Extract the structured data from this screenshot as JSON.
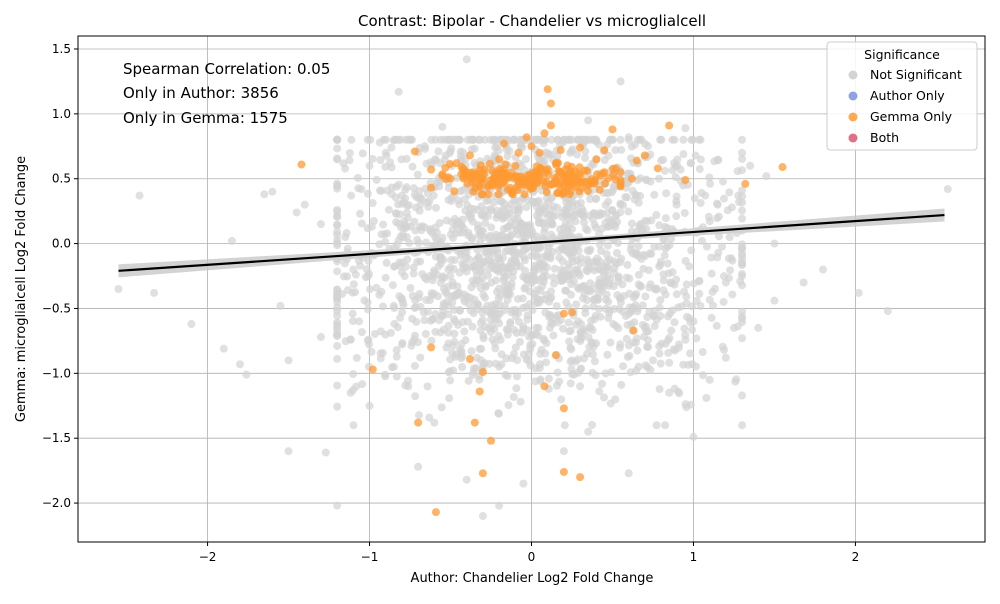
{
  "chart_data": {
    "type": "scatter",
    "title": "Contrast: Bipolar - Chandelier vs microglialcell",
    "xlabel": "Author: Chandelier Log2 Fold Change",
    "ylabel": "Gemma: microglialcell Log2 Fold Change",
    "xlim": [
      -2.8,
      2.8
    ],
    "ylim": [
      -2.3,
      1.6
    ],
    "x_ticks": [
      -2,
      -1,
      0,
      1,
      2
    ],
    "y_ticks": [
      -2.0,
      -1.5,
      -1.0,
      -0.5,
      0.0,
      0.5,
      1.0,
      1.5
    ],
    "x_tick_labels": [
      "−2",
      "−1",
      "0",
      "1",
      "2"
    ],
    "y_tick_labels": [
      "−2.0",
      "−1.5",
      "−1.0",
      "−0.5",
      "0.0",
      "0.5",
      "1.0",
      "1.5"
    ],
    "grid": true,
    "legend_position": "top-right",
    "annotations": [
      "Spearman Correlation: 0.05",
      "Only in Author: 3856",
      "Only in Gemma: 1575"
    ],
    "legend": {
      "title": "Significance",
      "entries": [
        {
          "label": "Not Significant",
          "color": "#d3d3d3"
        },
        {
          "label": "Author Only",
          "color": "#7b93db"
        },
        {
          "label": "Gemma Only",
          "color": "#ff9a33"
        },
        {
          "label": "Both",
          "color": "#dd5770"
        }
      ]
    },
    "regression_line": {
      "x": [
        -2.55,
        2.55
      ],
      "y": [
        -0.21,
        0.22
      ],
      "color": "#000000",
      "ci_color": "#c8c8c8"
    },
    "series": [
      {
        "name": "Not Significant",
        "color": "#d3d3d3",
        "points": [
          [
            -2.55,
            -0.35
          ],
          [
            -2.42,
            0.37
          ],
          [
            -2.33,
            -0.38
          ],
          [
            -2.1,
            -0.62
          ],
          [
            -1.9,
            -0.81
          ],
          [
            -1.85,
            0.02
          ],
          [
            -1.8,
            -0.93
          ],
          [
            -1.76,
            -1.01
          ],
          [
            -1.65,
            0.38
          ],
          [
            -1.6,
            0.4
          ],
          [
            -1.55,
            -0.48
          ],
          [
            -1.5,
            -1.6
          ],
          [
            -1.5,
            -0.9
          ],
          [
            -1.45,
            0.24
          ],
          [
            -1.4,
            0.3
          ],
          [
            -1.27,
            -1.61
          ],
          [
            -1.2,
            -2.02
          ],
          [
            -1.0,
            -1.25
          ],
          [
            -0.82,
            1.17
          ],
          [
            -0.4,
            1.42
          ],
          [
            0.55,
            1.25
          ],
          [
            0.8,
            0.64
          ],
          [
            0.95,
            0.89
          ],
          [
            1.05,
            0.39
          ],
          [
            1.08,
            -1.19
          ],
          [
            1.0,
            -1.49
          ],
          [
            1.3,
            0.7
          ],
          [
            1.35,
            0.6
          ],
          [
            1.45,
            0.52
          ],
          [
            1.5,
            -0.44
          ],
          [
            1.5,
            0.0
          ],
          [
            1.68,
            -0.3
          ],
          [
            1.8,
            -0.2
          ],
          [
            2.02,
            -0.38
          ],
          [
            2.2,
            -0.52
          ],
          [
            2.57,
            0.42
          ],
          [
            1.25,
            -0.65
          ],
          [
            1.2,
            -0.88
          ],
          [
            1.4,
            -0.65
          ],
          [
            -0.3,
            -2.1
          ],
          [
            -0.2,
            -2.02
          ],
          [
            -0.05,
            -1.85
          ],
          [
            -0.4,
            -1.82
          ],
          [
            -0.7,
            -1.72
          ],
          [
            0.6,
            -1.77
          ],
          [
            0.2,
            -1.6
          ],
          [
            0.35,
            -1.45
          ],
          [
            -0.6,
            -1.38
          ],
          [
            0.85,
            -1.15
          ],
          [
            1.1,
            -1.05
          ],
          [
            -1.3,
            -0.72
          ],
          [
            -1.2,
            -0.45
          ],
          [
            -1.15,
            0.05
          ],
          [
            -1.05,
            0.42
          ],
          [
            -1.0,
            0.6
          ],
          [
            -0.9,
            0.7
          ],
          [
            -0.75,
            0.8
          ],
          [
            -0.55,
            0.9
          ],
          [
            0.35,
            0.95
          ],
          [
            0.6,
            0.82
          ],
          [
            0.9,
            0.6
          ],
          [
            1.15,
            0.3
          ],
          [
            1.2,
            -0.3
          ],
          [
            1.0,
            -0.6
          ],
          [
            0.75,
            -0.9
          ],
          [
            -0.85,
            -0.95
          ],
          [
            -1.1,
            -0.2
          ],
          [
            1.3,
            0.1
          ],
          [
            -1.3,
            0.15
          ],
          [
            0.3,
            -1.1
          ]
        ],
        "dense_cloud": {
          "center": [
            0.0,
            -0.05
          ],
          "spread_x": [
            -1.2,
            1.3
          ],
          "spread_y": [
            -1.4,
            0.8
          ],
          "count": 1900
        }
      },
      {
        "name": "Gemma Only",
        "color": "#ff9a33",
        "points": [
          [
            -1.42,
            0.61
          ],
          [
            -0.72,
            0.71
          ],
          [
            -0.62,
            0.57
          ],
          [
            -0.62,
            0.43
          ],
          [
            -0.98,
            -0.97
          ],
          [
            -0.62,
            -0.8
          ],
          [
            -0.38,
            -0.89
          ],
          [
            -0.3,
            -0.99
          ],
          [
            -0.32,
            -1.14
          ],
          [
            -0.35,
            -1.38
          ],
          [
            -0.25,
            -1.52
          ],
          [
            -0.7,
            -1.38
          ],
          [
            -0.59,
            -2.07
          ],
          [
            -0.3,
            -1.77
          ],
          [
            0.08,
            -1.1
          ],
          [
            0.2,
            -1.27
          ],
          [
            0.2,
            -1.76
          ],
          [
            0.3,
            -1.8
          ],
          [
            0.15,
            -0.86
          ],
          [
            0.2,
            -0.54
          ],
          [
            0.25,
            -0.53
          ],
          [
            0.63,
            -0.67
          ],
          [
            0.1,
            1.19
          ],
          [
            0.12,
            1.08
          ],
          [
            0.12,
            0.91
          ],
          [
            0.08,
            0.85
          ],
          [
            -0.03,
            0.82
          ],
          [
            -0.08,
            0.7
          ],
          [
            -0.17,
            0.77
          ],
          [
            -0.38,
            0.68
          ],
          [
            0.0,
            0.75
          ],
          [
            0.18,
            0.72
          ],
          [
            0.3,
            0.74
          ],
          [
            0.45,
            0.72
          ],
          [
            0.5,
            0.88
          ],
          [
            0.85,
            0.91
          ],
          [
            0.95,
            0.49
          ],
          [
            1.32,
            0.46
          ],
          [
            1.55,
            0.59
          ],
          [
            0.62,
            0.5
          ],
          [
            0.7,
            0.68
          ],
          [
            0.78,
            0.58
          ],
          [
            0.65,
            0.64
          ],
          [
            0.4,
            0.65
          ],
          [
            0.55,
            0.45
          ],
          [
            -0.5,
            0.5
          ],
          [
            0.35,
            0.45
          ],
          [
            0.25,
            0.52
          ],
          [
            0.15,
            0.62
          ],
          [
            -0.1,
            0.6
          ],
          [
            -0.3,
            0.55
          ],
          [
            0.45,
            0.55
          ],
          [
            0.52,
            0.58
          ],
          [
            0.05,
            0.7
          ],
          [
            -0.2,
            0.65
          ]
        ],
        "dense_cloud": {
          "center": [
            0.0,
            0.5
          ],
          "spread_x": [
            -0.55,
            0.55
          ],
          "spread_y": [
            0.38,
            0.62
          ],
          "count": 220
        }
      }
    ]
  }
}
